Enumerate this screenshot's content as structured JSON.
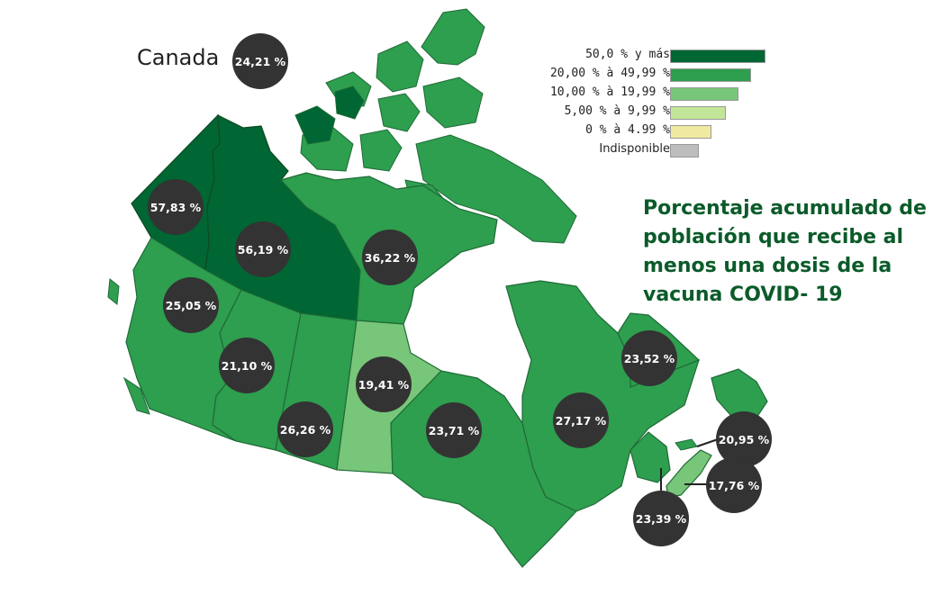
{
  "title": "Porcentaje acumulado de población que recibe al menos una dosis de la vacuna COVID-  19",
  "country": {
    "label": "Canada",
    "value": "24,21 %"
  },
  "legend": [
    {
      "label": "50,0 % y más",
      "color": "#006633"
    },
    {
      "label": "20,00 % à 49,99 %",
      "color": "#2e9e4f"
    },
    {
      "label": "10,00 % à 19,99 %",
      "color": "#78c679"
    },
    {
      "label": "5,00 % à 9,99 %",
      "color": "#c2e699"
    },
    {
      "label": "0 % à 4.99 %",
      "color": "#f0eaa0"
    },
    {
      "label": "Indisponible",
      "color": "#bdbdbd"
    }
  ],
  "regions": [
    {
      "id": "yukon",
      "value": "57,83 %",
      "bin": "50,0 % y más"
    },
    {
      "id": "northwest-territories",
      "value": "56,19 %",
      "bin": "50,0 % y más"
    },
    {
      "id": "nunavut",
      "value": "36,22 %",
      "bin": "20,00 % à 49,99 %"
    },
    {
      "id": "british-columbia",
      "value": "25,05 %",
      "bin": "20,00 % à 49,99 %"
    },
    {
      "id": "alberta",
      "value": "21,10 %",
      "bin": "20,00 % à 49,99 %"
    },
    {
      "id": "saskatchewan",
      "value": "26,26 %",
      "bin": "20,00 % à 49,99 %"
    },
    {
      "id": "manitoba",
      "value": "19,41 %",
      "bin": "10,00 % à 19,99 %"
    },
    {
      "id": "ontario",
      "value": "23,71 %",
      "bin": "20,00 % à 49,99 %"
    },
    {
      "id": "quebec",
      "value": "27,17 %",
      "bin": "20,00 % à 49,99 %"
    },
    {
      "id": "newfoundland-and-labrador",
      "value": "23,52 %",
      "bin": "20,00 % à 49,99 %"
    },
    {
      "id": "prince-edward-island",
      "value": "20,95 %",
      "bin": "20,00 % à 49,99 %"
    },
    {
      "id": "nova-scotia",
      "value": "17,76 %",
      "bin": "10,00 % à 19,99 %"
    },
    {
      "id": "new-brunswick",
      "value": "23,39 %",
      "bin": "20,00 % à 49,99 %"
    }
  ]
}
